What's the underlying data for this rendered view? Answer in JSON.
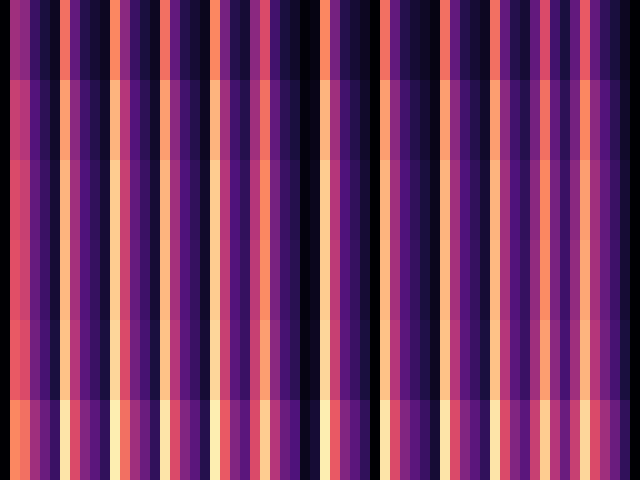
{
  "chart_data": {
    "type": "heatmap",
    "tick_labels": false,
    "color_range": [
      0,
      1
    ],
    "cells": [
      [
        0,
        0.45,
        0.4,
        0.2,
        0.12,
        0.06,
        0.7,
        0.3,
        0.15,
        0.1,
        0.06,
        0.75,
        0.4,
        0.2,
        0.12,
        0.06,
        0.7,
        0.3,
        0.15,
        0.1,
        0.05,
        0.75,
        0.35,
        0.15,
        0.1,
        0.4,
        0.6,
        0.22,
        0.12,
        0.08,
        0.01,
        0.03,
        0.75,
        0.35,
        0.15,
        0.1,
        0.06,
        0,
        0.7,
        0.3,
        0.15,
        0.1,
        0.07,
        0.03,
        0.7,
        0.3,
        0.15,
        0.1,
        0.06,
        0.7,
        0.3,
        0.15,
        0.1,
        0.3,
        0.6,
        0.22,
        0.12,
        0.3,
        0.65,
        0.3,
        0.18,
        0.12,
        0.06,
        0
      ],
      [
        0,
        0.55,
        0.5,
        0.26,
        0.17,
        0.08,
        0.8,
        0.4,
        0.22,
        0.15,
        0.08,
        0.85,
        0.5,
        0.26,
        0.17,
        0.08,
        0.8,
        0.4,
        0.22,
        0.15,
        0.06,
        0.85,
        0.45,
        0.22,
        0.15,
        0.45,
        0.7,
        0.3,
        0.17,
        0.12,
        0.02,
        0.04,
        0.85,
        0.45,
        0.22,
        0.15,
        0.08,
        0,
        0.8,
        0.4,
        0.22,
        0.15,
        0.1,
        0.04,
        0.8,
        0.4,
        0.22,
        0.15,
        0.08,
        0.8,
        0.4,
        0.22,
        0.15,
        0.35,
        0.7,
        0.3,
        0.17,
        0.35,
        0.75,
        0.4,
        0.26,
        0.17,
        0.08,
        0
      ],
      [
        0,
        0.6,
        0.55,
        0.3,
        0.2,
        0.1,
        0.85,
        0.45,
        0.25,
        0.18,
        0.1,
        0.9,
        0.55,
        0.3,
        0.2,
        0.1,
        0.85,
        0.45,
        0.25,
        0.18,
        0.08,
        0.9,
        0.5,
        0.25,
        0.18,
        0.5,
        0.75,
        0.35,
        0.2,
        0.15,
        0.02,
        0.05,
        0.9,
        0.5,
        0.25,
        0.18,
        0.1,
        0,
        0.85,
        0.45,
        0.25,
        0.18,
        0.12,
        0.05,
        0.85,
        0.45,
        0.25,
        0.18,
        0.1,
        0.85,
        0.45,
        0.25,
        0.18,
        0.4,
        0.75,
        0.35,
        0.2,
        0.4,
        0.8,
        0.45,
        0.3,
        0.2,
        0.1,
        0
      ],
      [
        0,
        0.62,
        0.56,
        0.31,
        0.21,
        0.1,
        0.86,
        0.46,
        0.26,
        0.19,
        0.1,
        0.9,
        0.56,
        0.31,
        0.21,
        0.1,
        0.86,
        0.46,
        0.26,
        0.19,
        0.08,
        0.9,
        0.52,
        0.26,
        0.19,
        0.52,
        0.76,
        0.36,
        0.21,
        0.16,
        0.02,
        0.05,
        0.9,
        0.52,
        0.26,
        0.19,
        0.1,
        0,
        0.86,
        0.46,
        0.26,
        0.19,
        0.12,
        0.05,
        0.86,
        0.46,
        0.26,
        0.19,
        0.1,
        0.86,
        0.46,
        0.26,
        0.19,
        0.42,
        0.76,
        0.36,
        0.21,
        0.42,
        0.82,
        0.46,
        0.31,
        0.21,
        0.1,
        0
      ],
      [
        0,
        0.65,
        0.6,
        0.34,
        0.23,
        0.12,
        0.88,
        0.5,
        0.28,
        0.2,
        0.12,
        0.92,
        0.6,
        0.34,
        0.23,
        0.12,
        0.88,
        0.5,
        0.28,
        0.2,
        0.1,
        0.92,
        0.55,
        0.28,
        0.2,
        0.55,
        0.8,
        0.4,
        0.23,
        0.17,
        0.03,
        0.06,
        0.92,
        0.55,
        0.28,
        0.2,
        0.12,
        0,
        0.88,
        0.5,
        0.28,
        0.2,
        0.14,
        0.06,
        0.88,
        0.5,
        0.28,
        0.2,
        0.12,
        0.88,
        0.5,
        0.28,
        0.2,
        0.45,
        0.8,
        0.4,
        0.23,
        0.45,
        0.85,
        0.5,
        0.34,
        0.23,
        0.12,
        0
      ],
      [
        0,
        0.75,
        0.7,
        0.45,
        0.32,
        0.2,
        0.95,
        0.6,
        0.38,
        0.28,
        0.18,
        0.97,
        0.7,
        0.45,
        0.32,
        0.18,
        0.95,
        0.6,
        0.38,
        0.28,
        0.15,
        0.97,
        0.65,
        0.38,
        0.28,
        0.6,
        0.9,
        0.5,
        0.32,
        0.25,
        0.05,
        0.1,
        0.97,
        0.65,
        0.38,
        0.28,
        0.18,
        0,
        0.95,
        0.6,
        0.38,
        0.28,
        0.2,
        0.1,
        0.95,
        0.6,
        0.38,
        0.28,
        0.18,
        0.95,
        0.6,
        0.38,
        0.28,
        0.55,
        0.9,
        0.5,
        0.32,
        0.55,
        0.92,
        0.6,
        0.45,
        0.32,
        0.18,
        0
      ]
    ]
  }
}
